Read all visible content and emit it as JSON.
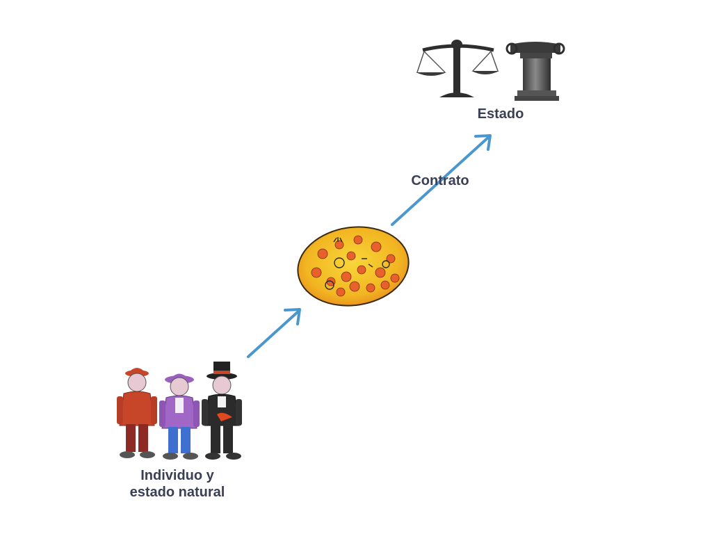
{
  "nodes": {
    "individuals": {
      "label_line1": "Individuo y",
      "label_line2": "estado natural"
    },
    "society": {
      "label": ""
    },
    "state": {
      "label": "Estado"
    }
  },
  "edges": {
    "contract": {
      "label": "Contrato"
    }
  },
  "colors": {
    "arrow": "#4a97cf",
    "label_text": "#3a3f55",
    "society_fill": "#f4c21d",
    "society_face": "#e8612b",
    "figure_red": "#c7462a",
    "figure_purple": "#9b5fc0",
    "figure_blue": "#3f6fcf",
    "figure_black": "#2b2b2b",
    "state_gray": "#4a4a4a"
  },
  "icons": [
    "worker-figure-icon",
    "lady-figure-icon",
    "gentleman-figure-icon",
    "crowd-oval-icon",
    "scales-icon",
    "column-icon"
  ]
}
